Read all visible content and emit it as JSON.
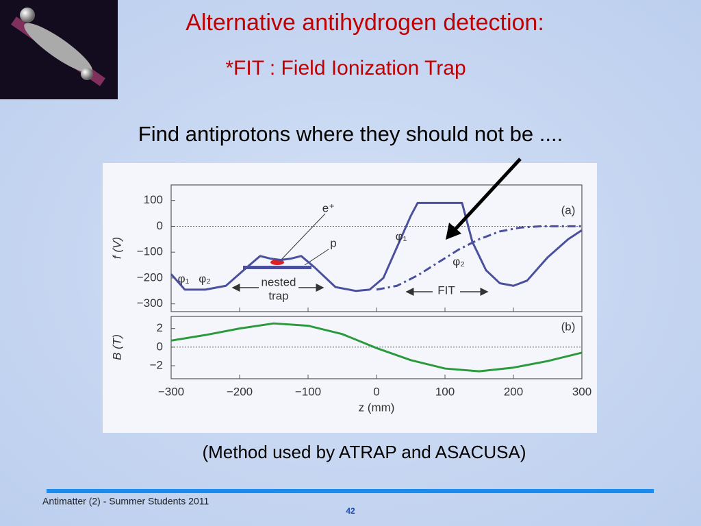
{
  "title": "Alternative antihydrogen detection:",
  "subtitle": "*FIT  : Field Ionization Trap",
  "heading": "Find antiprotons where they should not be ....",
  "caption": "(Method used by ATRAP and ASACUSA)",
  "footer": "Antimatter (2) - Summer Students 2011",
  "page_number": "42",
  "chart_data": [
    {
      "type": "line",
      "ylabel": "f (V)",
      "annotations": [
        "(a)",
        "e⁺",
        "p",
        "φ₁",
        "φ₂",
        "φ₁",
        "φ₂",
        "nested",
        "trap",
        "FIT"
      ],
      "xlim": [
        -300,
        300
      ],
      "ylim": [
        -330,
        160
      ],
      "yticks": [
        100,
        0,
        {
          "value": -100,
          "label": "−100"
        },
        {
          "value": -200,
          "label": "−200"
        },
        {
          "value": -300,
          "label": "−300"
        }
      ],
      "series": [
        {
          "color": "#4a4f9e",
          "style": "solid",
          "x": [
            -300,
            -280,
            -250,
            -220,
            -190,
            -170,
            -155,
            -140,
            -125,
            -110,
            -90,
            -60,
            -30,
            -10,
            10,
            30,
            50,
            60,
            125,
            140,
            160,
            180,
            200,
            220,
            250,
            280,
            300
          ],
          "values": [
            -185,
            -245,
            -245,
            -230,
            -160,
            -115,
            -125,
            -130,
            -125,
            -115,
            -160,
            -235,
            -250,
            -245,
            -200,
            -80,
            40,
            90,
            90,
            -60,
            -170,
            -220,
            -230,
            -210,
            -120,
            -50,
            -15
          ]
        },
        {
          "color": "#4a4f9e",
          "style": "dashdot",
          "x": [
            0,
            30,
            60,
            90,
            120,
            150,
            180,
            210,
            240,
            270,
            300
          ],
          "values": [
            -245,
            -230,
            -190,
            -140,
            -90,
            -50,
            -20,
            -5,
            0,
            0,
            0
          ]
        }
      ]
    },
    {
      "type": "line",
      "ylabel": "B (T)",
      "xlabel": "z (mm)",
      "annotations": [
        "(b)"
      ],
      "xlim": [
        -300,
        300
      ],
      "ylim": [
        -3.4,
        3.3
      ],
      "xticks": [
        {
          "value": -300,
          "label": "−300"
        },
        {
          "value": -200,
          "label": "−200"
        },
        {
          "value": -100,
          "label": "−100"
        },
        0,
        100,
        200,
        300
      ],
      "yticks": [
        2,
        0,
        {
          "value": -2,
          "label": "−2"
        }
      ],
      "series": [
        {
          "color": "#2a9a3c",
          "style": "solid",
          "x": [
            -300,
            -250,
            -200,
            -150,
            -100,
            -50,
            0,
            50,
            100,
            150,
            200,
            250,
            300
          ],
          "values": [
            0.7,
            1.3,
            2.0,
            2.55,
            2.3,
            1.4,
            -0.1,
            -1.4,
            -2.3,
            -2.6,
            -2.2,
            -1.5,
            -0.6
          ]
        }
      ]
    }
  ]
}
